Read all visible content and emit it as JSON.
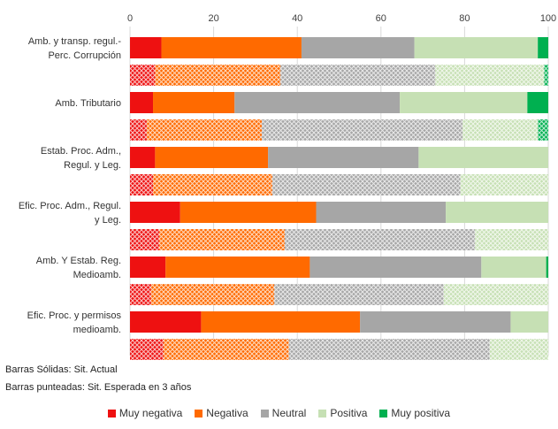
{
  "chart_data": {
    "type": "bar",
    "orientation": "horizontal",
    "stacked": true,
    "xlim": [
      0,
      100
    ],
    "x_ticks": [
      "0",
      "20",
      "40",
      "60",
      "80",
      "100"
    ],
    "groups": [
      {
        "label": "Amb. y transp. regul.- Perc. Corrupción",
        "actual": [
          7.5,
          33.5,
          27,
          29.5,
          2.5
        ],
        "esperada": [
          6,
          30,
          37,
          26,
          1
        ]
      },
      {
        "label": "Amb. Tributario",
        "actual": [
          5.5,
          19.5,
          39.5,
          30.5,
          5
        ],
        "esperada": [
          4,
          27.5,
          48,
          18,
          2.5
        ]
      },
      {
        "label": "Estab. Proc. Adm., Regul. y Leg.",
        "actual": [
          6,
          27,
          36,
          31,
          0
        ],
        "esperada": [
          5.5,
          28.5,
          45,
          21,
          0
        ]
      },
      {
        "label": "Efic. Proc. Adm., Regul. y Leg.",
        "actual": [
          12,
          32.5,
          31,
          24.5,
          0
        ],
        "esperada": [
          7,
          30,
          45.5,
          17.5,
          0
        ]
      },
      {
        "label": "Amb. Y Estab. Reg. Medioamb.",
        "actual": [
          8.5,
          34.5,
          41,
          15.5,
          0.5
        ],
        "esperada": [
          5,
          29.5,
          40.5,
          25,
          0
        ]
      },
      {
        "label": "Efic. Proc. y permisos medioamb.",
        "actual": [
          17,
          38,
          36,
          9,
          0
        ],
        "esperada": [
          8,
          30,
          48,
          14,
          0
        ]
      }
    ],
    "series": [
      {
        "name": "Muy negativa",
        "color": "#ee1111"
      },
      {
        "name": "Negativa",
        "color": "#ff6a00"
      },
      {
        "name": "Neutral",
        "color": "#a6a6a6"
      },
      {
        "name": "Positiva",
        "color": "#c6e0b4"
      },
      {
        "name": "Muy positiva",
        "color": "#00b050"
      }
    ],
    "notes": [
      "Barras Sólidas: Sit. Actual",
      "Barras punteadas: Sit. Esperada en 3 años"
    ],
    "grid": true,
    "legend_position": "bottom"
  }
}
